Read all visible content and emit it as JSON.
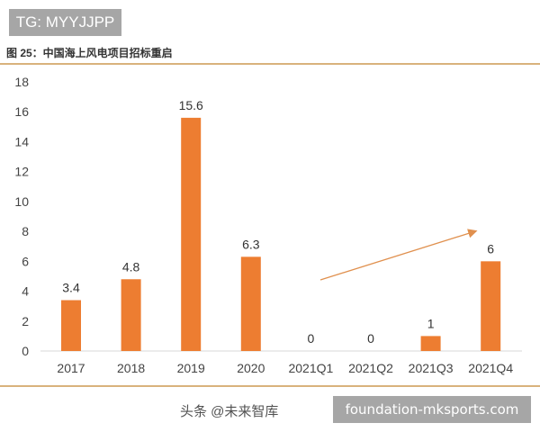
{
  "watermark_top": "TG: MYYJJPP",
  "watermark_bottom": "foundation-mksports.com",
  "watermark_overlay": "头条 @未来智库",
  "chart_data": {
    "type": "bar",
    "title": "图 25：中国海上风电项目招标重启",
    "categories": [
      "2017",
      "2018",
      "2019",
      "2020",
      "2021Q1",
      "2021Q2",
      "2021Q3",
      "2021Q4"
    ],
    "values": [
      3.4,
      4.8,
      15.6,
      6.3,
      0,
      0,
      1,
      6
    ],
    "data_labels": [
      "3.4",
      "4.8",
      "15.6",
      "6.3",
      "0",
      "0",
      "1",
      "6"
    ],
    "yticks": [
      0,
      2,
      4,
      6,
      8,
      10,
      12,
      14,
      16,
      18
    ],
    "ylim": [
      0,
      18
    ],
    "xlabel": "",
    "ylabel": "",
    "grid": false,
    "bar_color": "#ed7d31",
    "annotation": "trend-arrow from 2021Q1 to 2021Q4"
  }
}
